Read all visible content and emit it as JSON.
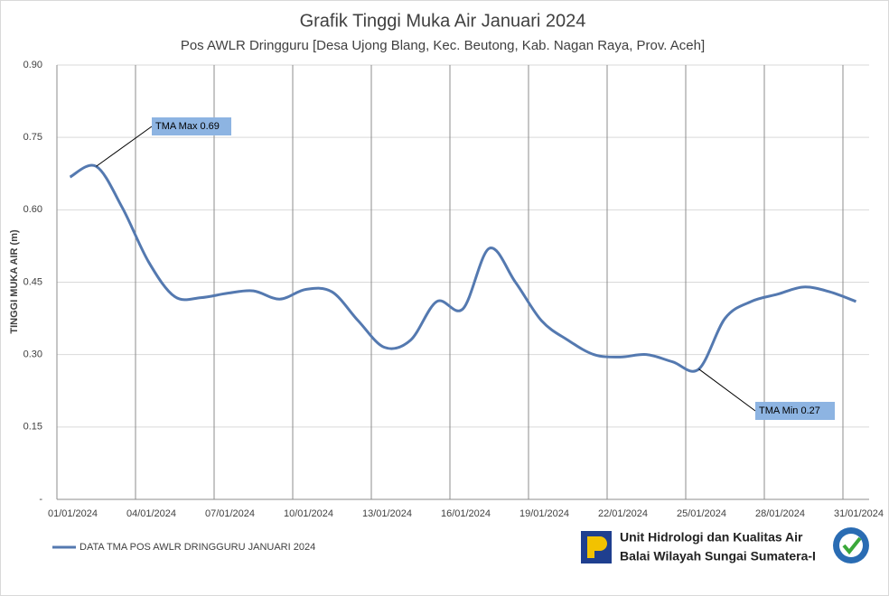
{
  "chart_data": {
    "type": "line",
    "title": "Grafik Tinggi Muka Air Januari 2024",
    "subtitle": "Pos AWLR Dringguru [Desa Ujong Blang, Kec. Beutong, Kab. Nagan Raya, Prov. Aceh]",
    "y_label": "TINGGI MUKA AIR (m)",
    "categories": [
      "01/01/2024",
      null,
      null,
      "04/01/2024",
      null,
      null,
      "07/01/2024",
      null,
      null,
      "10/01/2024",
      null,
      null,
      "13/01/2024",
      null,
      null,
      "16/01/2024",
      null,
      null,
      "19/01/2024",
      null,
      null,
      "22/01/2024",
      null,
      null,
      "25/01/2024",
      null,
      null,
      "28/01/2024",
      null,
      null,
      "31/01/2024"
    ],
    "series": [
      {
        "name": "DATA TMA POS AWLR DRINGGURU JANUARI 2024",
        "color": "#5479b0",
        "values": [
          0.668,
          0.69,
          0.604,
          0.492,
          0.42,
          0.418,
          0.427,
          0.432,
          0.415,
          0.435,
          0.43,
          0.37,
          0.315,
          0.33,
          0.41,
          0.395,
          0.52,
          0.45,
          0.37,
          0.33,
          0.3,
          0.295,
          0.3,
          0.285,
          0.27,
          0.375,
          0.41,
          0.425,
          0.44,
          0.43,
          0.41
        ]
      }
    ],
    "ylim": [
      0,
      0.9
    ],
    "yticks": [
      {
        "value": 0,
        "label": "-"
      },
      {
        "value": 0.15,
        "label": "0.15"
      },
      {
        "value": 0.3,
        "label": "0.30"
      },
      {
        "value": 0.45,
        "label": "0.45"
      },
      {
        "value": 0.6,
        "label": "0.60"
      },
      {
        "value": 0.75,
        "label": "0.75"
      },
      {
        "value": 0.9,
        "label": "0.90"
      }
    ],
    "annotations": [
      {
        "text": "TMA  Max 0.69",
        "index": 1
      },
      {
        "text": "TMA  Min 0.27",
        "index": 24
      }
    ],
    "grid": true
  },
  "footer": {
    "line1": "Unit Hidrologi dan Kualitas Air",
    "line2": "Balai Wilayah Sungai Sumatera-I"
  }
}
